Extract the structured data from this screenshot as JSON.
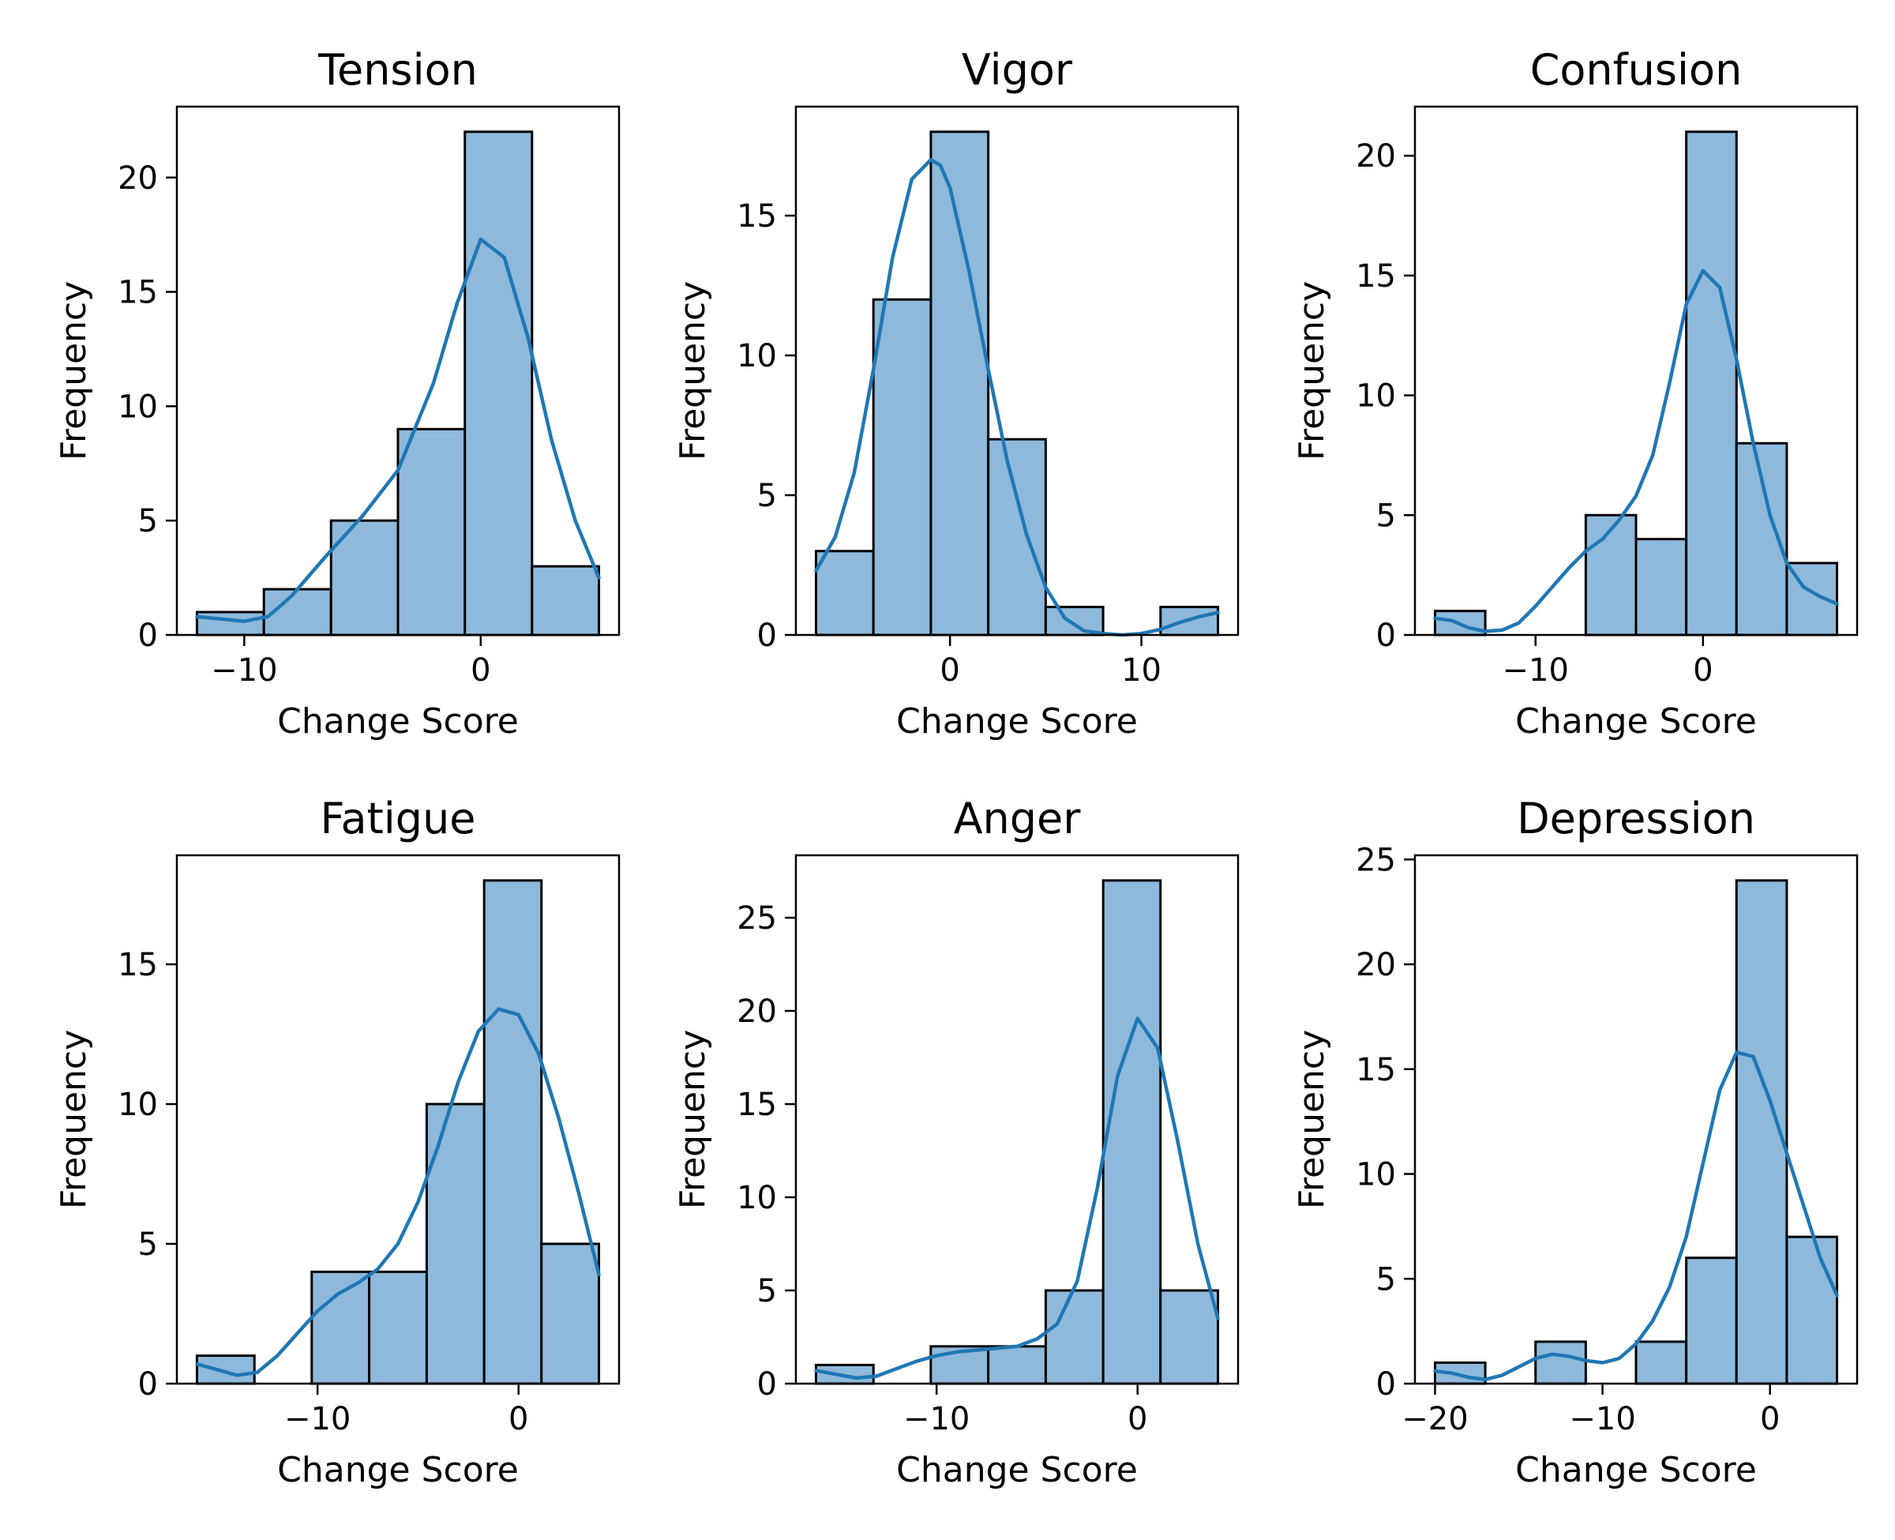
{
  "chart_data": [
    {
      "type": "bar",
      "title": "Tension",
      "xlabel": "Change Score",
      "ylabel": "Frequency",
      "xlim": [
        -12.85,
        5.85
      ],
      "ylim": [
        0,
        23.1
      ],
      "xticks": [
        -10,
        0
      ],
      "xtick_labels": [
        "−10",
        "0"
      ],
      "yticks": [
        0,
        5,
        10,
        15,
        20
      ],
      "ytick_labels": [
        "0",
        "5",
        "10",
        "15",
        "20"
      ],
      "bin_edges": [
        -12,
        -9.17,
        -6.33,
        -3.5,
        -0.67,
        2.17,
        5
      ],
      "counts": [
        1,
        2,
        5,
        9,
        22,
        3
      ],
      "kde": {
        "x": [
          -12,
          -10,
          -9,
          -8,
          -6.5,
          -5,
          -3.5,
          -2,
          -1,
          0,
          1,
          2,
          3,
          4,
          5
        ],
        "y": [
          0.8,
          0.6,
          0.8,
          1.7,
          3.5,
          5.2,
          7.2,
          11,
          14.5,
          17.3,
          16.5,
          13,
          8.5,
          5,
          2.5
        ]
      },
      "bar_color": "#8fb9da",
      "line_color": "#1f77b4"
    },
    {
      "type": "bar",
      "title": "Vigor",
      "xlabel": "Change Score",
      "ylabel": "Frequency",
      "xlim": [
        -8.05,
        15.05
      ],
      "ylim": [
        0,
        18.9
      ],
      "xticks": [
        0,
        10
      ],
      "xtick_labels": [
        "0",
        "10"
      ],
      "yticks": [
        0,
        5,
        10,
        15
      ],
      "ytick_labels": [
        "0",
        "5",
        "10",
        "15"
      ],
      "bin_edges": [
        -7,
        -4,
        -1,
        2,
        5,
        8,
        11,
        14
      ],
      "counts": [
        3,
        12,
        18,
        7,
        1,
        0,
        1
      ],
      "kde": {
        "x": [
          -7,
          -6,
          -5,
          -4,
          -3,
          -2,
          -1,
          -0.5,
          0,
          1,
          2,
          3,
          4,
          5,
          6,
          7,
          8,
          9,
          10,
          11,
          12,
          13,
          14
        ],
        "y": [
          2.3,
          3.5,
          5.8,
          9.5,
          13.5,
          16.3,
          17.0,
          16.8,
          16.0,
          13.0,
          9.5,
          6.2,
          3.6,
          1.7,
          0.6,
          0.15,
          0.05,
          0.0,
          0.05,
          0.2,
          0.45,
          0.65,
          0.8
        ]
      },
      "bar_color": "#8fb9da",
      "line_color": "#1f77b4"
    },
    {
      "type": "bar",
      "title": "Confusion",
      "xlabel": "Change Score",
      "ylabel": "Frequency",
      "xlim": [
        -17.2,
        9.2
      ],
      "ylim": [
        0,
        22.05
      ],
      "xticks": [
        -10,
        0
      ],
      "xtick_labels": [
        "−10",
        "0"
      ],
      "yticks": [
        0,
        5,
        10,
        15,
        20
      ],
      "ytick_labels": [
        "0",
        "5",
        "10",
        "15",
        "20"
      ],
      "bin_edges": [
        -16,
        -13,
        -10,
        -7,
        -4,
        -1,
        2,
        5,
        8
      ],
      "counts": [
        1,
        0,
        0,
        5,
        4,
        21,
        8,
        3
      ],
      "kde": {
        "x": [
          -16,
          -15,
          -14,
          -13,
          -12,
          -11,
          -10,
          -9,
          -8,
          -7,
          -6,
          -5,
          -4,
          -3,
          -2,
          -1,
          0,
          1,
          2,
          3,
          4,
          5,
          6,
          7,
          8
        ],
        "y": [
          0.7,
          0.6,
          0.3,
          0.15,
          0.2,
          0.5,
          1.2,
          2.0,
          2.8,
          3.5,
          4.0,
          4.8,
          5.8,
          7.5,
          10.5,
          13.8,
          15.2,
          14.5,
          11.5,
          8.0,
          5.0,
          3.0,
          2.0,
          1.6,
          1.3
        ]
      },
      "bar_color": "#8fb9da",
      "line_color": "#1f77b4"
    },
    {
      "type": "bar",
      "title": "Fatigue",
      "xlabel": "Change Score",
      "ylabel": "Frequency",
      "xlim": [
        -17,
        5
      ],
      "ylim": [
        0,
        18.9
      ],
      "xticks": [
        -10,
        0
      ],
      "xtick_labels": [
        "−10",
        "0"
      ],
      "yticks": [
        0,
        5,
        10,
        15
      ],
      "ytick_labels": [
        "0",
        "5",
        "10",
        "15"
      ],
      "bin_edges": [
        -16,
        -13.14,
        -10.29,
        -7.43,
        -4.57,
        -1.71,
        1.14,
        4
      ],
      "counts": [
        1,
        0,
        4,
        4,
        10,
        18,
        5
      ],
      "kde": {
        "x": [
          -16,
          -15,
          -14,
          -13,
          -12,
          -11,
          -10,
          -9,
          -8,
          -7,
          -6,
          -5,
          -4,
          -3,
          -2,
          -1,
          0,
          1,
          2,
          3,
          4
        ],
        "y": [
          0.7,
          0.5,
          0.3,
          0.4,
          1.0,
          1.8,
          2.6,
          3.2,
          3.6,
          4.1,
          5.0,
          6.5,
          8.5,
          10.8,
          12.6,
          13.4,
          13.2,
          11.8,
          9.5,
          6.8,
          3.9
        ]
      },
      "bar_color": "#8fb9da",
      "line_color": "#1f77b4"
    },
    {
      "type": "bar",
      "title": "Anger",
      "xlabel": "Change Score",
      "ylabel": "Frequency",
      "xlim": [
        -17,
        5
      ],
      "ylim": [
        0,
        28.35
      ],
      "xticks": [
        -10,
        0
      ],
      "xtick_labels": [
        "−10",
        "0"
      ],
      "yticks": [
        0,
        5,
        10,
        15,
        20,
        25
      ],
      "ytick_labels": [
        "0",
        "5",
        "10",
        "15",
        "20",
        "25"
      ],
      "bin_edges": [
        -16,
        -13.14,
        -10.29,
        -7.43,
        -4.57,
        -1.71,
        1.14,
        4
      ],
      "counts": [
        1,
        0,
        2,
        2,
        5,
        27,
        5
      ],
      "kde": {
        "x": [
          -16,
          -15,
          -14,
          -13,
          -12,
          -11,
          -10,
          -9,
          -8,
          -7,
          -6,
          -5,
          -4,
          -3,
          -2,
          -1,
          0,
          1,
          2,
          3,
          4
        ],
        "y": [
          0.7,
          0.5,
          0.3,
          0.4,
          0.8,
          1.2,
          1.5,
          1.7,
          1.8,
          1.9,
          2.0,
          2.4,
          3.2,
          5.5,
          10.5,
          16.5,
          19.6,
          18.0,
          13.0,
          7.5,
          3.5
        ]
      },
      "bar_color": "#8fb9da",
      "line_color": "#1f77b4"
    },
    {
      "type": "bar",
      "title": "Depression",
      "xlabel": "Change Score",
      "ylabel": "Frequency",
      "xlim": [
        -21.2,
        5.2
      ],
      "ylim": [
        0,
        25.2
      ],
      "xticks": [
        -20,
        -10,
        0
      ],
      "xtick_labels": [
        "−20",
        "−10",
        "0"
      ],
      "yticks": [
        0,
        5,
        10,
        15,
        20,
        25
      ],
      "ytick_labels": [
        "0",
        "5",
        "10",
        "15",
        "20",
        "25"
      ],
      "bin_edges": [
        -20,
        -17,
        -14,
        -11,
        -8,
        -5,
        -2,
        1,
        4
      ],
      "counts": [
        1,
        0,
        2,
        0,
        2,
        6,
        24,
        7
      ],
      "kde": {
        "x": [
          -20,
          -19,
          -18,
          -17,
          -16,
          -15,
          -14,
          -13,
          -12,
          -11,
          -10,
          -9,
          -8,
          -7,
          -6,
          -5,
          -4,
          -3,
          -2,
          -1,
          0,
          1,
          2,
          3,
          4
        ],
        "y": [
          0.6,
          0.5,
          0.3,
          0.2,
          0.4,
          0.8,
          1.2,
          1.4,
          1.3,
          1.1,
          1.0,
          1.2,
          1.9,
          3.0,
          4.6,
          7.0,
          10.5,
          14.0,
          15.8,
          15.6,
          13.5,
          11.0,
          8.5,
          6.0,
          4.2
        ]
      },
      "bar_color": "#8fb9da",
      "line_color": "#1f77b4"
    }
  ]
}
